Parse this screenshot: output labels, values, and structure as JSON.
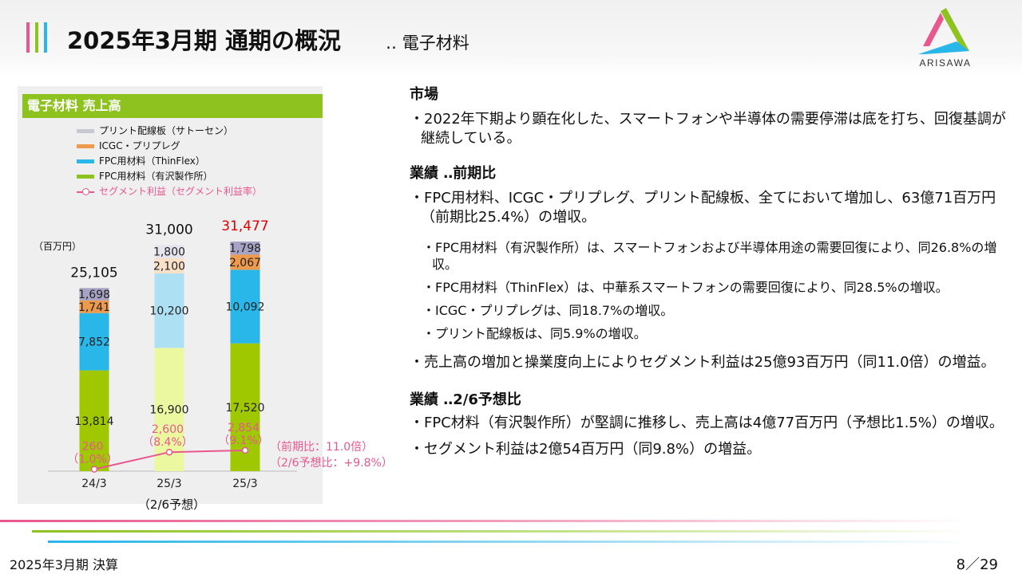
{
  "header": {
    "title": "2025年3月期 通期の概況",
    "subtitle": "‥ 電子材料",
    "logo_text": "ARISAWA",
    "accent_colors": [
      "#e8588e",
      "#8dc21f",
      "#29b6e8"
    ]
  },
  "chart_panel": {
    "heading": "電子材料 売上高",
    "unit": "（百万円）",
    "legend": [
      {
        "label": "プリント配線板（サトーセン）",
        "color": "#c8c8d4"
      },
      {
        "label": "ICGC・プリプレグ",
        "color": "#ee9a4d"
      },
      {
        "label": "FPC用材料（ThinFlex）",
        "color": "#29b6e8"
      },
      {
        "label": "FPC用材料（有沢製作所）",
        "color": "#8dc21f"
      },
      {
        "label": "セグメント利益（セグメント利益率）",
        "color": "#e8588e"
      }
    ]
  },
  "chart_data": {
    "type": "bar",
    "stacked": true,
    "categories": [
      "24/3",
      "25/3",
      "25/3"
    ],
    "category_sublabels": [
      "",
      "（2/6予想）",
      ""
    ],
    "series": [
      {
        "name": "FPC用材料（有沢製作所）",
        "values": [
          13814,
          16900,
          17520
        ],
        "color": "#a0c800",
        "forecast_color": "#ecf8a0"
      },
      {
        "name": "FPC用材料（ThinFlex）",
        "values": [
          7852,
          10200,
          10092
        ],
        "color": "#29b6e8",
        "forecast_color": "#aee0f4"
      },
      {
        "name": "ICGC・プリプレグ",
        "values": [
          1741,
          2100,
          2067
        ],
        "color": "#ee9a4d",
        "forecast_color": "#fbe0c8"
      },
      {
        "name": "プリント配線板（サトーセン）",
        "values": [
          1698,
          1800,
          1798
        ],
        "color": "#a7a3c4",
        "forecast_color": "#e6e4ef"
      }
    ],
    "value_labels": [
      [
        "13,814",
        "7,852",
        "1,741",
        "1,698"
      ],
      [
        "16,900",
        "10,200",
        "2,100",
        "1,800"
      ],
      [
        "17,520",
        "10,092",
        "2,067",
        "1,798"
      ]
    ],
    "totals": [
      "25,105",
      "31,000",
      "31,477"
    ],
    "total_colors": [
      "#111111",
      "#111111",
      "#e00000"
    ],
    "segment_profit": {
      "name": "セグメント利益（セグメント利益率）",
      "values": [
        260,
        2600,
        2854
      ],
      "value_labels": [
        "260",
        "2,600",
        "2,854"
      ],
      "rate_labels": [
        "（1.0%）",
        "（8.4%）",
        "（9.1%）"
      ],
      "color": "#e8588e"
    },
    "annotations": [
      "（前期比：11.0倍）",
      "（2/6予想比：+9.8%）"
    ],
    "ylabel": "（百万円）",
    "ylim": [
      0,
      34000
    ]
  },
  "sections": [
    {
      "heading": "市場",
      "items": [
        {
          "level": 1,
          "text": "・2022年下期より顕在化した、スマートフォンや半導体の需要停滞は底を打ち、回復基調が継続している。"
        }
      ]
    },
    {
      "heading": "業績 ‥前期比",
      "items": [
        {
          "level": 1,
          "text": "・FPC用材料、ICGC・プリプレグ、プリント配線板、全てにおいて増加し、63億71百万円（前期比25.4%）の増収。"
        },
        {
          "level": 2,
          "text": "・FPC用材料（有沢製作所）は、スマートフォンおよび半導体用途の需要回復により、同26.8%の増収。"
        },
        {
          "level": 2,
          "text": "・FPC用材料（ThinFlex）は、中華系スマートフォンの需要回復により、同28.5%の増収。"
        },
        {
          "level": 2,
          "text": "・ICGC・プリプレグは、同18.7%の増収。"
        },
        {
          "level": 2,
          "text": "・プリント配線板は、同5.9%の増収。"
        },
        {
          "level": 1,
          "text": "・売上高の増加と操業度向上によりセグメント利益は25億93百万円（同11.0倍）の増益。"
        }
      ]
    },
    {
      "heading": "業績 ‥2/6予想比",
      "items": [
        {
          "level": 1,
          "text": "・FPC材料（有沢製作所）が堅調に推移し、売上高は4億77百万円（予想比1.5%）の増収。"
        },
        {
          "level": 1,
          "text": "・セグメント利益は2億54百万円（同9.8%）の増益。"
        }
      ]
    }
  ],
  "footer": {
    "left": "2025年3月期 決算",
    "right": "8／29"
  }
}
